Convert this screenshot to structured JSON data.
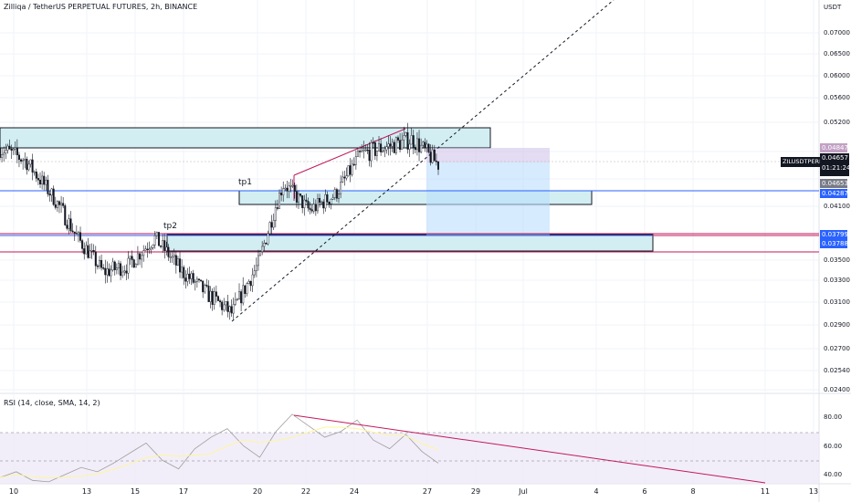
{
  "header": {
    "symbol_title": "Zilliqa / TetherUS PERPETUAL FUTURES, 2h, BINANCE",
    "unit": "USDT"
  },
  "rsi": {
    "title": "RSI (14, close, SMA, 14, 2)",
    "ticks": [
      "80.00",
      "60.00",
      "40.00"
    ]
  },
  "price_axis": {
    "ticks": [
      "0.07000",
      "0.06500",
      "0.06000",
      "0.05600",
      "0.05200",
      "0.04100",
      "0.03500",
      "0.03300",
      "0.03100",
      "0.02900",
      "0.02700",
      "0.02540",
      "0.02400"
    ],
    "badges": [
      {
        "text": "0.04847",
        "color": "#c2a0c4"
      },
      {
        "text": "0.04653",
        "color": "#787b86"
      },
      {
        "text": "0.04287",
        "color": "#2962ff"
      },
      {
        "text": "0.03799",
        "color": "#2962ff"
      },
      {
        "text": "0.03788",
        "color": "#c2185b"
      }
    ],
    "current": {
      "symbol": "ZILUSDTPERP",
      "price": "0.04657",
      "countdown": "01:21:24"
    }
  },
  "time_axis": {
    "ticks": [
      "10",
      "13",
      "15",
      "17",
      "20",
      "22",
      "24",
      "27",
      "29",
      "Jul",
      "4",
      "6",
      "8",
      "11",
      "13"
    ]
  },
  "annotations": {
    "tp1": "tp1",
    "tp2": "tp2"
  },
  "colors": {
    "zone_fill": "#d3eef3",
    "zone_border": "#131722",
    "blue_line": "#2962ff",
    "magenta_line": "#c2185b",
    "rsi_band": "#ede7f6",
    "rsi_trend": "#c2185b",
    "candle": "#131722"
  },
  "chart_data": [
    {
      "type": "candlestick",
      "title": "Zilliqa / TetherUS PERPETUAL FUTURES, 2h, BINANCE",
      "x_dates": [
        "10",
        "13",
        "15",
        "17",
        "20",
        "22",
        "24",
        "27"
      ],
      "close_path": [
        {
          "x": "10",
          "y": 0.0486
        },
        {
          "x": "11",
          "y": 0.047
        },
        {
          "x": "12",
          "y": 0.0425
        },
        {
          "x": "13",
          "y": 0.0375
        },
        {
          "x": "14",
          "y": 0.0338
        },
        {
          "x": "15",
          "y": 0.0345
        },
        {
          "x": "16",
          "y": 0.0375
        },
        {
          "x": "17",
          "y": 0.034
        },
        {
          "x": "18",
          "y": 0.0318
        },
        {
          "x": "19",
          "y": 0.03
        },
        {
          "x": "20",
          "y": 0.0345
        },
        {
          "x": "21",
          "y": 0.044
        },
        {
          "x": "22",
          "y": 0.0405
        },
        {
          "x": "23",
          "y": 0.0425
        },
        {
          "x": "24",
          "y": 0.0478
        },
        {
          "x": "25",
          "y": 0.0488
        },
        {
          "x": "26",
          "y": 0.0498
        },
        {
          "x": "27",
          "y": 0.0465
        }
      ],
      "ylim": [
        0.024,
        0.072
      ],
      "levels": [
        0.04847,
        0.04653,
        0.04287,
        0.03799,
        0.03788
      ]
    },
    {
      "type": "line",
      "title": "RSI (14, close, SMA, 14, 2)",
      "ylim": [
        35,
        90
      ],
      "band": [
        30,
        70
      ],
      "y": [
        38,
        42,
        36,
        35,
        40,
        45,
        42,
        48,
        55,
        62,
        50,
        44,
        58,
        66,
        72,
        60,
        52,
        70,
        82,
        74,
        66,
        70,
        78,
        64,
        58,
        68,
        56,
        48
      ]
    }
  ]
}
